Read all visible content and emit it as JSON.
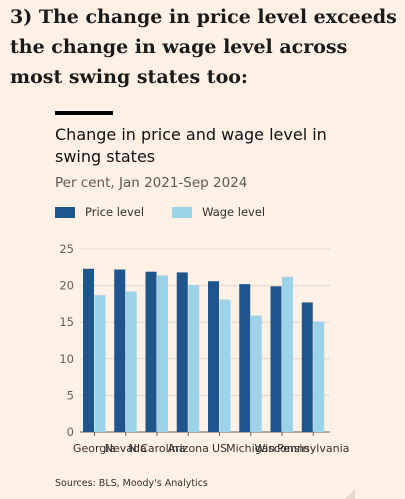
{
  "heading": "3) The change in price level exceeds the change in wage level across most swing states too:",
  "chart_data": {
    "type": "bar",
    "title": "Change in price and wage level in swing states",
    "subtitle": "Per cent, Jan 2021-Sep 2024",
    "categories": [
      "Georgia",
      "Nevada",
      "N Carolina",
      "Arizona",
      "US",
      "Michigan",
      "Wisconsin",
      "Pennsylvania"
    ],
    "series": [
      {
        "name": "Price level",
        "color": "#1e558c",
        "values": [
          22.3,
          22.2,
          21.9,
          21.8,
          20.6,
          20.2,
          19.9,
          17.7
        ]
      },
      {
        "name": "Wage level",
        "color": "#9dd3e8",
        "values": [
          18.7,
          19.2,
          21.4,
          20.1,
          18.1,
          15.9,
          21.2,
          15.1
        ]
      }
    ],
    "yticks": [
      0,
      5,
      10,
      15,
      20,
      25
    ],
    "ylim": [
      0,
      25
    ],
    "grid": true,
    "legend": "top-left",
    "source": "Sources: BLS, Moody's Analytics"
  }
}
